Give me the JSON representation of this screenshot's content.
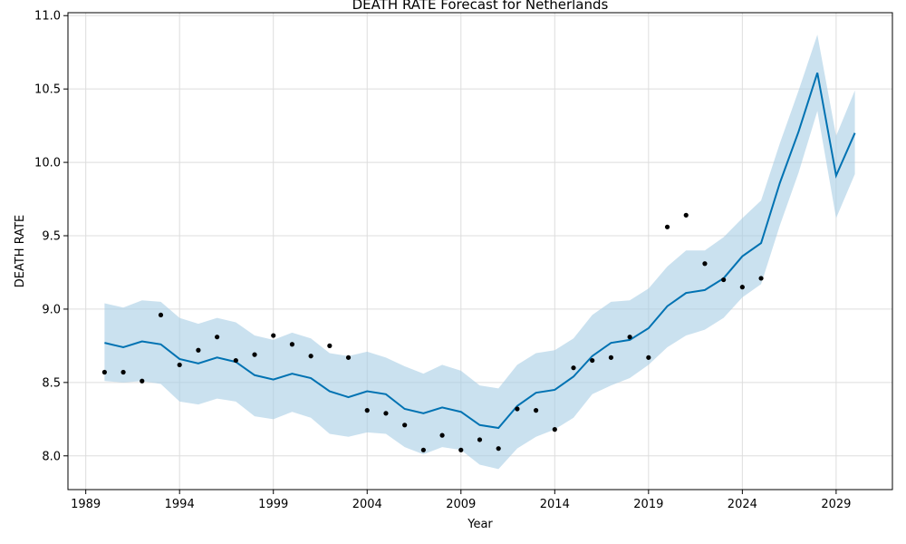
{
  "chart_data": {
    "type": "line",
    "title": "DEATH RATE Forecast for Netherlands",
    "xlabel": "Year",
    "ylabel": "DEATH RATE",
    "xlim": [
      1988.05,
      2032.0
    ],
    "ylim": [
      7.77,
      11.02
    ],
    "x_ticks": [
      1989,
      1994,
      1999,
      2004,
      2009,
      2014,
      2019,
      2024,
      2029
    ],
    "y_ticks": [
      8.0,
      8.5,
      9.0,
      9.5,
      10.0,
      10.5,
      11.0
    ],
    "y_tick_labels": [
      "8.0",
      "8.5",
      "9.0",
      "9.5",
      "10.0",
      "10.5",
      "11.0"
    ],
    "grid": true,
    "colors": {
      "forecast": "#0072b2",
      "band": "#a6cde4",
      "observed": "#000000",
      "grid": "#dddddd"
    },
    "series": [
      {
        "kind": "observed",
        "x": [
          1990,
          1991,
          1992,
          1993,
          1994,
          1995,
          1996,
          1997,
          1998,
          1999,
          2000,
          2001,
          2002,
          2003,
          2004,
          2005,
          2006,
          2007,
          2008,
          2009,
          2010,
          2011,
          2012,
          2013,
          2014,
          2015,
          2016,
          2017,
          2018,
          2019,
          2020,
          2021,
          2022,
          2023,
          2024,
          2025
        ],
        "y": [
          8.57,
          8.57,
          8.51,
          8.96,
          8.62,
          8.72,
          8.81,
          8.65,
          8.69,
          8.82,
          8.76,
          8.68,
          8.75,
          8.67,
          8.31,
          8.29,
          8.21,
          8.04,
          8.14,
          8.04,
          8.11,
          8.05,
          8.32,
          8.31,
          8.18,
          8.6,
          8.65,
          8.67,
          8.81,
          8.67,
          9.56,
          9.64,
          9.31,
          9.2,
          9.15,
          9.21
        ]
      },
      {
        "kind": "forecast",
        "x": [
          1990,
          1991,
          1992,
          1993,
          1994,
          1995,
          1996,
          1997,
          1998,
          1999,
          2000,
          2001,
          2002,
          2003,
          2004,
          2005,
          2006,
          2007,
          2008,
          2009,
          2010,
          2011,
          2012,
          2013,
          2014,
          2015,
          2016,
          2017,
          2018,
          2019,
          2020,
          2021,
          2022,
          2023,
          2024,
          2025,
          2026,
          2027,
          2028,
          2029,
          2030
        ],
        "y": [
          8.77,
          8.74,
          8.78,
          8.76,
          8.66,
          8.63,
          8.67,
          8.64,
          8.55,
          8.52,
          8.56,
          8.53,
          8.44,
          8.4,
          8.44,
          8.42,
          8.32,
          8.29,
          8.33,
          8.3,
          8.21,
          8.19,
          8.34,
          8.43,
          8.45,
          8.54,
          8.68,
          8.77,
          8.79,
          8.87,
          9.02,
          9.11,
          9.13,
          9.21,
          9.36,
          9.45,
          9.86,
          10.21,
          10.61,
          9.91,
          10.2
        ],
        "lower": [
          8.51,
          8.5,
          8.51,
          8.49,
          8.37,
          8.35,
          8.39,
          8.37,
          8.27,
          8.25,
          8.3,
          8.26,
          8.15,
          8.13,
          8.16,
          8.15,
          8.06,
          8.01,
          8.06,
          8.04,
          7.94,
          7.91,
          8.05,
          8.13,
          8.18,
          8.26,
          8.42,
          8.48,
          8.53,
          8.62,
          8.74,
          8.82,
          8.86,
          8.94,
          9.08,
          9.17,
          9.57,
          9.93,
          10.35,
          9.62,
          9.92
        ],
        "upper": [
          9.04,
          9.01,
          9.06,
          9.05,
          8.94,
          8.9,
          8.94,
          8.91,
          8.82,
          8.79,
          8.84,
          8.8,
          8.7,
          8.68,
          8.71,
          8.67,
          8.61,
          8.56,
          8.62,
          8.58,
          8.48,
          8.46,
          8.62,
          8.7,
          8.72,
          8.8,
          8.96,
          9.05,
          9.06,
          9.14,
          9.29,
          9.4,
          9.4,
          9.49,
          9.62,
          9.74,
          10.13,
          10.49,
          10.87,
          10.18,
          10.49
        ]
      }
    ]
  }
}
